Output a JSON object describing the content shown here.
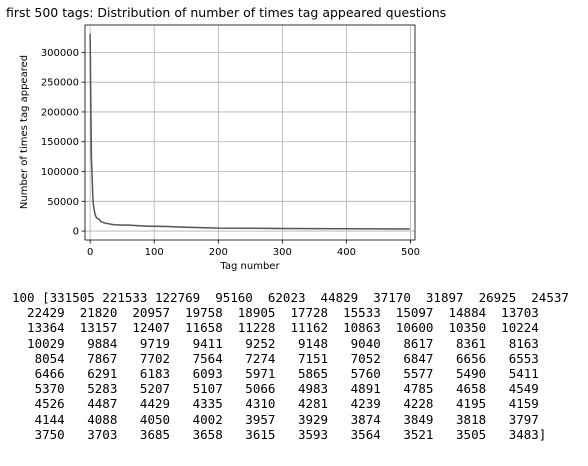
{
  "chart_data": {
    "type": "line",
    "title": "first 500 tags: Distribution of number of times tag appeared questions",
    "xlabel": "Tag number",
    "ylabel": "Number of times tag appeared",
    "xlim": [
      -8,
      507
    ],
    "ylim": [
      -15000,
      346000
    ],
    "xticks": [
      0,
      100,
      200,
      300,
      400,
      500
    ],
    "yticks": [
      0,
      50000,
      100000,
      150000,
      200000,
      250000,
      300000
    ],
    "xtick_labels": [
      "0",
      "100",
      "200",
      "300",
      "400",
      "500"
    ],
    "ytick_labels": [
      "0",
      "50000",
      "100000",
      "150000",
      "200000",
      "250000",
      "300000"
    ],
    "grid": true,
    "line_color": "#555555",
    "series": [
      {
        "x": [
          0,
          1,
          2,
          3,
          4,
          5,
          6,
          7,
          8,
          9,
          10,
          12,
          15,
          17,
          20,
          22,
          25,
          30,
          35,
          40,
          50,
          60,
          70,
          80,
          90,
          100,
          120,
          150,
          200,
          250,
          300,
          350,
          400,
          450,
          499
        ],
        "y": [
          331505,
          221533,
          122769,
          95160,
          62023,
          44829,
          37170,
          31897,
          26925,
          24537,
          22429,
          20957,
          18905,
          15533,
          14884,
          13703,
          13000,
          12000,
          11000,
          10500,
          10029,
          9884,
          9252,
          8617,
          8163,
          8054,
          7700,
          6500,
          5000,
          4800,
          4300,
          4200,
          3900,
          3700,
          3483
        ]
      }
    ]
  },
  "output": {
    "lines": [
      "100 [331505 221533 122769  95160  62023  44829  37170  31897  26925  24537",
      "  22429  21820  20957  19758  18905  17728  15533  15097  14884  13703",
      "  13364  13157  12407  11658  11228  11162  10863  10600  10350  10224",
      "  10029   9884   9719   9411   9252   9148   9040   8617   8361   8163",
      "   8054   7867   7702   7564   7274   7151   7052   6847   6656   6553",
      "   6466   6291   6183   6093   5971   5865   5760   5577   5490   5411",
      "   5370   5283   5207   5107   5066   4983   4891   4785   4658   4549",
      "   4526   4487   4429   4335   4310   4281   4239   4228   4195   4159",
      "   4144   4088   4050   4002   3957   3929   3874   3849   3818   3797",
      "   3750   3703   3685   3658   3615   3593   3564   3521   3505   3483]"
    ]
  }
}
